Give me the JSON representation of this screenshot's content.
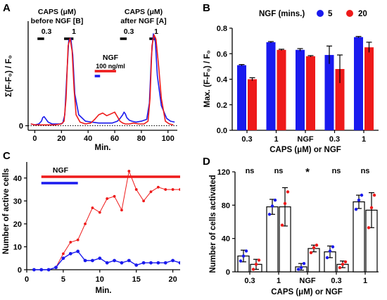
{
  "colors": {
    "blue": "#1a1aee",
    "red": "#ee1a1a",
    "axis": "#000000"
  },
  "chart_data": [
    {
      "panel": "A",
      "type": "line",
      "xlabel": "Min.",
      "ylabel": "Σ(F-F₀) / F₀",
      "xlim": [
        -5,
        107
      ],
      "ylim": [
        -0.05,
        1.15
      ],
      "xticks": [
        "0",
        "20",
        "40",
        "60",
        "80",
        "100"
      ],
      "yticks": [
        "0"
      ],
      "baseline_dotted": true,
      "annotations": {
        "before_title_1": "CAPS (μM)",
        "before_title_2": "before NGF [B]",
        "after_title_1": "CAPS (μM)",
        "after_title_2": "after NGF [A]",
        "dose_b1": "0.3",
        "dose_b2": "1",
        "dose_a1": "0.3",
        "dose_a2": "1",
        "ngf_label": "NGF",
        "ngf_dose": "100 ng/ml"
      },
      "bars": {
        "dose_b1": [
          2,
          7
        ],
        "dose_b2": [
          22,
          29
        ],
        "dose_a1": [
          64,
          69
        ],
        "dose_a2": [
          86,
          91
        ],
        "ngf_red": [
          45,
          61
        ],
        "ngf_blue": [
          45,
          49
        ]
      },
      "series": [
        {
          "color": "blue",
          "x": [
            -3,
            0,
            3,
            5,
            6,
            7,
            8,
            10,
            13,
            16,
            19,
            21,
            22.5,
            24,
            25.5,
            27,
            28.5,
            30,
            33,
            38,
            43,
            48,
            53,
            58,
            62,
            64,
            66,
            67,
            68,
            69,
            71,
            73,
            76,
            80,
            84,
            86,
            87.5,
            89,
            90.5,
            92,
            95,
            99,
            102,
            105
          ],
          "y": [
            0.02,
            0.01,
            0.02,
            0.05,
            0.09,
            0.1,
            0.08,
            0.04,
            0.02,
            0.02,
            0.02,
            0.03,
            0.12,
            0.55,
            0.94,
            0.96,
            0.78,
            0.35,
            0.12,
            0.05,
            0.04,
            0.03,
            0.03,
            0.03,
            0.05,
            0.08,
            0.12,
            0.15,
            0.13,
            0.09,
            0.06,
            0.05,
            0.04,
            0.05,
            0.07,
            0.25,
            0.75,
            1.01,
            0.92,
            0.55,
            0.22,
            0.08,
            0.05,
            0.04
          ]
        },
        {
          "color": "red",
          "x": [
            -3,
            0,
            5,
            10,
            15,
            20,
            22,
            23.5,
            25,
            26.5,
            28,
            29.5,
            31,
            34,
            38,
            42,
            45,
            48,
            51,
            54,
            57,
            60,
            62,
            64,
            66,
            68,
            71,
            74,
            78,
            82,
            85,
            86.5,
            88,
            89.5,
            91,
            93,
            95,
            98,
            101,
            104
          ],
          "y": [
            0.02,
            0.01,
            0.01,
            0.01,
            0.01,
            0.02,
            0.05,
            0.3,
            0.88,
            0.96,
            0.82,
            0.4,
            0.12,
            0.04,
            0.02,
            0.03,
            0.07,
            0.12,
            0.14,
            0.11,
            0.13,
            0.15,
            0.1,
            0.05,
            0.03,
            0.02,
            0.02,
            0.03,
            0.02,
            0.02,
            0.05,
            0.3,
            0.88,
            1.0,
            0.95,
            0.65,
            0.3,
            0.05,
            0.02,
            0.01
          ]
        }
      ]
    },
    {
      "panel": "B",
      "type": "bar",
      "xlabel": "CAPS (μM) or NGF",
      "ylabel": "Max. (F-F₀) / F₀",
      "ylim": [
        0,
        0.8
      ],
      "yticks": [
        "0.0",
        "0.2",
        "0.4",
        "0.6",
        "0.8"
      ],
      "categories": [
        "0.3",
        "1",
        "NGF",
        "0.3",
        "1"
      ],
      "legend_title": "NGF (mins.)",
      "series": [
        {
          "name": "5",
          "color": "blue",
          "values": [
            0.51,
            0.69,
            0.63,
            0.59,
            0.73
          ],
          "errors": [
            0.005,
            0.005,
            0.01,
            0.07,
            0.005
          ]
        },
        {
          "name": "20",
          "color": "red",
          "values": [
            0.4,
            0.63,
            0.58,
            0.48,
            0.65
          ],
          "errors": [
            0.012,
            0.005,
            0.005,
            0.11,
            0.04
          ]
        }
      ]
    },
    {
      "panel": "C",
      "type": "line",
      "xlabel": "Min.",
      "ylabel": "Number of active cells",
      "xlim": [
        0,
        21
      ],
      "ylim": [
        0,
        47
      ],
      "xticks": [
        "0",
        "5",
        "10",
        "15",
        "20"
      ],
      "yticks": [
        "0",
        "10",
        "20",
        "30",
        "40"
      ],
      "annotations": {
        "ngf_label": "NGF"
      },
      "bars": {
        "ngf_red": [
          2,
          21
        ],
        "ngf_blue": [
          2,
          7
        ]
      },
      "series": [
        {
          "color": "red",
          "x": [
            1,
            2,
            3,
            4,
            5,
            6,
            7,
            8,
            9,
            10,
            11,
            12,
            13,
            14,
            15,
            16,
            17,
            18,
            19,
            20,
            21
          ],
          "y": [
            0,
            0,
            0,
            1,
            7,
            12,
            13,
            20,
            27,
            25,
            31,
            32,
            26,
            43,
            35,
            30,
            34,
            36,
            35,
            35,
            35
          ]
        },
        {
          "color": "blue",
          "x": [
            1,
            2,
            3,
            4,
            5,
            6,
            7,
            8,
            9,
            10,
            11,
            12,
            13,
            14,
            15,
            16,
            17,
            18,
            19,
            20,
            21
          ],
          "y": [
            0,
            0,
            0,
            1,
            5,
            7,
            8,
            4,
            4,
            5,
            3,
            4,
            3,
            4,
            2,
            3,
            3,
            3,
            3,
            4,
            3
          ]
        }
      ]
    },
    {
      "panel": "D",
      "type": "bar",
      "xlabel": "CAPS (μM) or NGF",
      "ylabel": "Number of cells activated",
      "ylim": [
        0,
        120
      ],
      "yticks": [
        "0",
        "40",
        "80",
        "120"
      ],
      "categories": [
        "0.3",
        "1",
        "NGF",
        "0.3",
        "1"
      ],
      "significance": [
        "ns",
        "ns",
        "*",
        "ns",
        "ns"
      ],
      "series": [
        {
          "name": "5",
          "color": "blue",
          "values": [
            19,
            78,
            6,
            24,
            84
          ],
          "errors": [
            7,
            9,
            4,
            7,
            8
          ],
          "points": [
            [
              13,
              19,
              25
            ],
            [
              69,
              79,
              86
            ],
            [
              3,
              5,
              10
            ],
            [
              17,
              25,
              30
            ],
            [
              75,
              86,
              92
            ]
          ]
        },
        {
          "name": "20",
          "color": "red",
          "values": [
            9,
            78,
            28,
            9,
            74
          ],
          "errors": [
            6,
            23,
            4,
            4,
            21
          ],
          "points": [
            [
              3,
              9,
              14
            ],
            [
              56,
              82,
              96
            ],
            [
              23,
              29,
              32
            ],
            [
              5,
              9,
              12
            ],
            [
              53,
              77,
              92
            ]
          ]
        }
      ]
    }
  ]
}
